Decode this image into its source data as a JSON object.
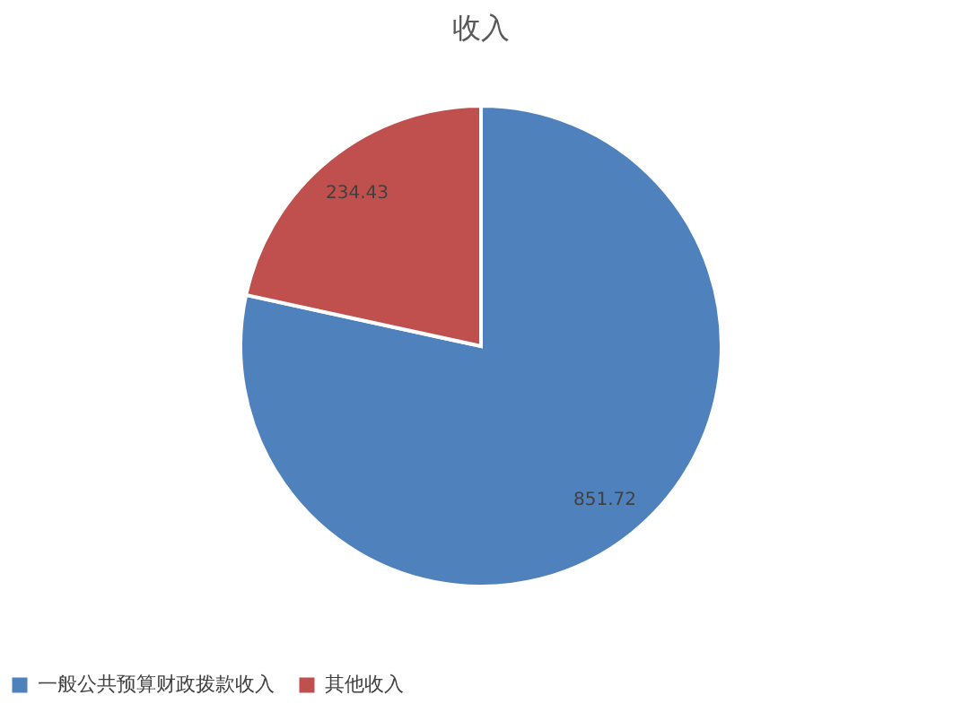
{
  "chart_data": {
    "type": "pie",
    "title": "收入",
    "categories": [
      "一般公共预算财政拨款收入",
      "其他收入"
    ],
    "values": [
      851.72,
      234.43
    ],
    "colors": [
      "#4f81bd",
      "#c0504d"
    ],
    "data_labels": true,
    "legend": "bottom"
  }
}
